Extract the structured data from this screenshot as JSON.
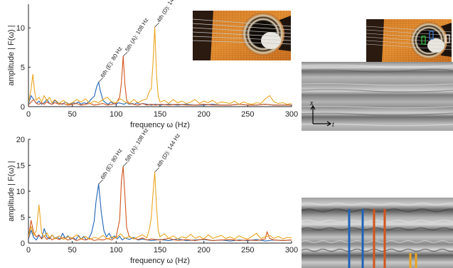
{
  "colors": {
    "series1": "#1f63b8",
    "series2": "#d2541c",
    "series3": "#eba520",
    "axis": "#222222"
  },
  "chart_data": [
    {
      "type": "line",
      "xlabel": "frequency ω (Hz)",
      "ylabel": "amplitude | F(ω) |",
      "xlim": [
        0,
        300
      ],
      "ylim": [
        0,
        13
      ],
      "xticks": [
        "0",
        "50",
        "100",
        "150",
        "200",
        "250",
        "300"
      ],
      "yticks": [
        "0",
        "5",
        "10"
      ],
      "series": [
        {
          "key": "series1",
          "x": [
            0,
            3,
            6,
            9,
            12,
            15,
            18,
            21,
            24,
            27,
            30,
            33,
            36,
            39,
            42,
            45,
            48,
            51,
            54,
            57,
            60,
            63,
            66,
            69,
            72,
            75,
            78,
            80,
            82,
            85,
            88,
            91,
            94,
            97,
            100,
            103,
            106,
            109,
            112,
            115,
            118,
            121,
            124,
            127,
            130,
            135,
            140,
            145,
            150,
            160,
            170,
            180,
            190,
            200,
            210,
            220,
            230,
            240,
            250,
            260,
            270,
            280,
            290,
            300
          ],
          "y": [
            0.3,
            1.4,
            0.9,
            0.4,
            0.7,
            0.3,
            0.5,
            0.9,
            0.4,
            0.3,
            0.8,
            0.5,
            0.4,
            0.3,
            0.6,
            0.4,
            0.3,
            0.5,
            0.4,
            0.6,
            0.3,
            0.5,
            0.4,
            0.6,
            1.0,
            1.3,
            2.6,
            3.1,
            2.0,
            0.8,
            0.5,
            0.3,
            0.6,
            0.4,
            0.3,
            0.5,
            0.4,
            0.3,
            0.5,
            0.3,
            0.4,
            0.3,
            0.5,
            0.3,
            0.4,
            0.3,
            0.2,
            0.3,
            0.2,
            0.3,
            0.2,
            0.3,
            0.2,
            0.2,
            0.3,
            0.2,
            0.2,
            0.3,
            0.2,
            0.2,
            0.3,
            0.2,
            0.2,
            0.2
          ]
        },
        {
          "key": "series2",
          "x": [
            0,
            3,
            6,
            9,
            12,
            15,
            18,
            21,
            24,
            27,
            30,
            35,
            40,
            45,
            50,
            55,
            60,
            65,
            70,
            75,
            80,
            85,
            90,
            95,
            100,
            104,
            106,
            108,
            110,
            112,
            115,
            120,
            125,
            130,
            135,
            140,
            145,
            150,
            160,
            170,
            180,
            190,
            200,
            210,
            220,
            230,
            240,
            250,
            260,
            270,
            280,
            290,
            300
          ],
          "y": [
            0.2,
            0.6,
            0.9,
            0.4,
            0.3,
            0.5,
            0.3,
            0.6,
            0.4,
            0.3,
            0.5,
            0.3,
            0.4,
            0.2,
            0.3,
            0.4,
            0.2,
            0.3,
            0.4,
            0.2,
            0.3,
            0.4,
            0.2,
            0.3,
            0.4,
            1.2,
            3.0,
            6.4,
            2.8,
            0.8,
            0.4,
            0.3,
            0.2,
            0.4,
            0.2,
            0.3,
            0.2,
            0.3,
            0.2,
            0.3,
            0.2,
            0.2,
            0.3,
            0.2,
            0.2,
            0.2,
            0.3,
            0.2,
            0.2,
            0.3,
            0.2,
            0.2,
            0.2
          ]
        },
        {
          "key": "series3",
          "x": [
            0,
            3,
            5,
            7,
            9,
            12,
            15,
            18,
            21,
            24,
            27,
            30,
            35,
            40,
            45,
            50,
            55,
            60,
            65,
            70,
            75,
            80,
            85,
            90,
            95,
            100,
            105,
            110,
            115,
            120,
            125,
            130,
            135,
            138,
            140,
            142,
            144,
            146,
            148,
            150,
            155,
            160,
            165,
            170,
            175,
            180,
            185,
            190,
            195,
            200,
            205,
            210,
            215,
            220,
            225,
            230,
            235,
            240,
            245,
            250,
            255,
            260,
            265,
            270,
            275,
            280,
            285,
            290,
            295,
            300
          ],
          "y": [
            0.5,
            2.2,
            4.1,
            2.0,
            0.8,
            1.2,
            0.6,
            1.4,
            0.7,
            1.2,
            0.5,
            0.9,
            0.4,
            0.8,
            0.3,
            0.5,
            0.9,
            0.6,
            1.0,
            0.4,
            0.7,
            0.5,
            0.9,
            1.2,
            0.6,
            0.5,
            1.0,
            0.6,
            0.4,
            0.9,
            0.5,
            0.8,
            1.0,
            2.0,
            2.2,
            5.5,
            10.1,
            4.0,
            1.3,
            0.6,
            0.8,
            0.4,
            0.9,
            0.5,
            0.7,
            0.4,
            0.6,
            0.9,
            0.4,
            0.7,
            0.5,
            0.8,
            0.4,
            0.6,
            0.5,
            0.4,
            0.7,
            0.3,
            0.6,
            0.4,
            0.3,
            0.5,
            0.4,
            1.0,
            1.4,
            0.6,
            0.4,
            0.5,
            0.3,
            0.4
          ]
        }
      ],
      "annotations": [
        {
          "text": "6th (E): 80 Hz",
          "x": 80,
          "y": 3.1,
          "key": "series1"
        },
        {
          "text": "5th (A): 108 Hz",
          "x": 108,
          "y": 6.4,
          "key": "series2"
        },
        {
          "text": "4th (D): 144 Hz",
          "x": 144,
          "y": 10.1,
          "key": "series3"
        }
      ]
    },
    {
      "type": "line",
      "xlabel": "frequency ω (Hz)",
      "ylabel": "amplitude | F(ω) |",
      "xlim": [
        0,
        300
      ],
      "ylim": [
        0,
        20
      ],
      "xticks": [
        "0",
        "50",
        "100",
        "150",
        "200",
        "250",
        "300"
      ],
      "yticks": [
        "0",
        "5",
        "10",
        "15",
        "20"
      ],
      "series": [
        {
          "key": "series1",
          "x": [
            0,
            3,
            6,
            9,
            12,
            15,
            18,
            21,
            24,
            27,
            30,
            33,
            36,
            39,
            42,
            45,
            48,
            51,
            54,
            57,
            60,
            63,
            66,
            69,
            72,
            75,
            77,
            80,
            83,
            86,
            89,
            92,
            95,
            98,
            101,
            104,
            107,
            110,
            115,
            120,
            125,
            130,
            140,
            150,
            160,
            170,
            180,
            190,
            200,
            210,
            220,
            230,
            240,
            250,
            260,
            270,
            280,
            290,
            300
          ],
          "y": [
            0.8,
            2.5,
            1.1,
            0.6,
            1.5,
            0.9,
            2.8,
            1.2,
            0.8,
            1.6,
            0.9,
            1.2,
            0.7,
            1.9,
            0.9,
            1.4,
            0.7,
            1.1,
            0.6,
            1.5,
            0.8,
            1.3,
            0.6,
            1.0,
            2.0,
            4.3,
            8.0,
            11.4,
            6.0,
            2.4,
            1.2,
            1.9,
            0.9,
            1.4,
            0.8,
            1.3,
            0.6,
            1.0,
            0.7,
            1.1,
            0.6,
            0.8,
            0.5,
            0.7,
            0.5,
            0.8,
            0.5,
            0.6,
            0.7,
            0.5,
            0.6,
            0.4,
            0.6,
            0.5,
            0.7,
            0.4,
            0.6,
            0.5,
            0.6
          ]
        },
        {
          "key": "series2",
          "x": [
            0,
            3,
            6,
            9,
            12,
            15,
            18,
            21,
            24,
            27,
            30,
            35,
            40,
            45,
            50,
            55,
            60,
            65,
            70,
            75,
            80,
            85,
            90,
            95,
            100,
            104,
            106,
            108,
            110,
            112,
            115,
            120,
            125,
            130,
            135,
            140,
            150,
            160,
            170,
            180,
            190,
            200,
            210,
            220,
            230,
            240,
            250,
            260,
            270,
            272,
            275,
            280,
            290,
            300
          ],
          "y": [
            1.0,
            4.4,
            2.0,
            1.2,
            1.6,
            0.8,
            1.4,
            0.7,
            1.2,
            0.6,
            1.0,
            0.7,
            1.1,
            0.6,
            0.9,
            0.5,
            0.8,
            0.6,
            0.9,
            0.5,
            0.7,
            0.6,
            0.9,
            0.6,
            1.2,
            4.5,
            12.0,
            14.8,
            9.0,
            3.0,
            1.2,
            0.9,
            0.7,
            1.0,
            0.6,
            0.8,
            0.6,
            0.9,
            0.5,
            0.7,
            0.5,
            0.8,
            0.5,
            0.6,
            0.7,
            0.5,
            0.6,
            0.5,
            0.8,
            2.2,
            0.9,
            0.6,
            0.5,
            0.6
          ]
        },
        {
          "key": "series3",
          "x": [
            0,
            3,
            6,
            9,
            12,
            15,
            18,
            21,
            24,
            27,
            30,
            35,
            40,
            45,
            50,
            55,
            60,
            65,
            70,
            75,
            80,
            85,
            90,
            95,
            100,
            105,
            110,
            115,
            120,
            125,
            130,
            135,
            138,
            140,
            142,
            144,
            146,
            148,
            150,
            155,
            160,
            165,
            170,
            175,
            180,
            185,
            190,
            195,
            200,
            205,
            210,
            215,
            220,
            225,
            230,
            235,
            240,
            245,
            250,
            255,
            260,
            265,
            270,
            275,
            280,
            285,
            290,
            295,
            300
          ],
          "y": [
            1.2,
            3.2,
            1.5,
            2.4,
            7.4,
            2.0,
            1.2,
            2.0,
            1.0,
            1.6,
            0.8,
            1.4,
            0.7,
            1.2,
            1.0,
            1.6,
            0.8,
            1.3,
            0.7,
            1.1,
            0.9,
            1.5,
            0.8,
            1.2,
            1.0,
            1.8,
            0.9,
            1.3,
            0.8,
            1.2,
            1.6,
            1.0,
            2.8,
            4.8,
            9.5,
            13.7,
            7.0,
            2.5,
            1.2,
            1.8,
            0.9,
            1.4,
            0.8,
            1.2,
            1.0,
            1.7,
            0.9,
            1.3,
            0.8,
            1.6,
            0.9,
            1.2,
            1.5,
            0.9,
            1.2,
            0.8,
            1.4,
            1.0,
            0.8,
            1.3,
            1.9,
            0.9,
            1.2,
            1.5,
            0.9,
            1.3,
            0.8,
            1.1,
            1.0
          ]
        }
      ],
      "annotations": [
        {
          "text": "6th (E): 80 Hz",
          "x": 80,
          "y": 11.4,
          "key": "series1"
        },
        {
          "text": "5th (A): 108 Hz",
          "x": 108,
          "y": 14.8,
          "key": "series2"
        },
        {
          "text": "4th (D): 144 Hz",
          "x": 144,
          "y": 13.7,
          "key": "series3"
        }
      ]
    }
  ],
  "images": {
    "guitar_top_label": "guitar-photo",
    "guitar_right_label": "guitar-photo-with-string-markers",
    "kymograph_top_axes": {
      "x": "x",
      "t": "t"
    },
    "kymograph_bottom_markers": [
      "series1",
      "series1",
      "series2",
      "series2",
      "series3",
      "series3"
    ]
  }
}
